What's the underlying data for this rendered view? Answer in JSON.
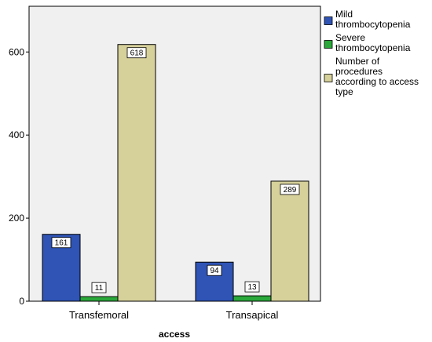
{
  "colors": {
    "plot_background": "#f0f0f0",
    "mild": "#2f54b5",
    "severe": "#2aa83a",
    "procedures": "#d6d09a"
  },
  "chart_data": {
    "type": "bar",
    "title": "",
    "xlabel": "access",
    "ylabel": "",
    "ylim": [
      0,
      710
    ],
    "yticks": [
      0,
      200,
      400,
      600
    ],
    "categories": [
      "Transfemoral",
      "Transapical"
    ],
    "series": [
      {
        "name": "Mild thrombocytopenia",
        "color": "#2f54b5",
        "values": [
          161,
          94
        ]
      },
      {
        "name": "Severe thrombocytopenia",
        "color": "#2aa83a",
        "values": [
          11,
          13
        ]
      },
      {
        "name": "Number of procedures according to access type",
        "color": "#d6d09a",
        "values": [
          618,
          289
        ]
      }
    ],
    "legend_position": "right",
    "grid": false
  }
}
